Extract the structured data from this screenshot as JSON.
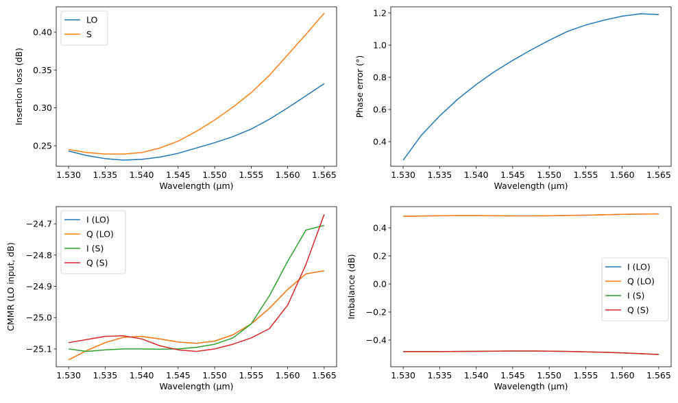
{
  "chart_data": [
    {
      "type": "line",
      "xlabel": "Wavelength (µm)",
      "ylabel": "Insertion loss (dB)",
      "xlim": [
        1.5283,
        1.5667
      ],
      "ylim": [
        0.2229,
        0.4334
      ],
      "xticks": [
        "1.530",
        "1.535",
        "1.540",
        "1.545",
        "1.550",
        "1.555",
        "1.560",
        "1.565"
      ],
      "yticks": [
        "0.25",
        "0.30",
        "0.35",
        "0.40"
      ],
      "legend_position": "upper-left",
      "x": [
        1.53,
        1.5325,
        1.535,
        1.5375,
        1.54,
        1.5425,
        1.545,
        1.5475,
        1.55,
        1.5525,
        1.555,
        1.5575,
        1.56,
        1.5625,
        1.565
      ],
      "series": [
        {
          "name": "LO",
          "color": "#1f77b4",
          "values": [
            0.243,
            0.237,
            0.233,
            0.231,
            0.232,
            0.235,
            0.24,
            0.247,
            0.254,
            0.262,
            0.272,
            0.285,
            0.3,
            0.316,
            0.332
          ]
        },
        {
          "name": "S",
          "color": "#ff7f0e",
          "values": [
            0.245,
            0.241,
            0.239,
            0.239,
            0.241,
            0.247,
            0.256,
            0.269,
            0.284,
            0.301,
            0.32,
            0.343,
            0.37,
            0.397,
            0.425
          ]
        }
      ]
    },
    {
      "type": "line",
      "xlabel": "Wavelength (µm)",
      "ylabel": "Phase error (°)",
      "xlim": [
        1.5283,
        1.5667
      ],
      "ylim": [
        0.247,
        1.238
      ],
      "xticks": [
        "1.530",
        "1.535",
        "1.540",
        "1.545",
        "1.550",
        "1.555",
        "1.560",
        "1.565"
      ],
      "yticks": [
        "0.4",
        "0.6",
        "0.8",
        "1.0",
        "1.2"
      ],
      "legend_position": "none",
      "x": [
        1.53,
        1.5325,
        1.535,
        1.5375,
        1.54,
        1.5425,
        1.545,
        1.5475,
        1.55,
        1.5525,
        1.555,
        1.5575,
        1.56,
        1.5625,
        1.565
      ],
      "series": [
        {
          "color": "#1f77b4",
          "values": [
            0.285,
            0.44,
            0.56,
            0.665,
            0.755,
            0.835,
            0.905,
            0.97,
            1.03,
            1.085,
            1.125,
            1.155,
            1.18,
            1.195,
            1.19
          ]
        }
      ]
    },
    {
      "type": "line",
      "xlabel": "Wavelength (µm)",
      "ylabel": "CMMR (LO input, dB)",
      "xlim": [
        1.5283,
        1.5667
      ],
      "ylim": [
        -25.157,
        -24.645
      ],
      "xticks": [
        "1.530",
        "1.535",
        "1.540",
        "1.545",
        "1.550",
        "1.555",
        "1.560",
        "1.565"
      ],
      "yticks": [
        "−25.1",
        "−25.0",
        "−24.9",
        "−24.8",
        "−24.7"
      ],
      "ytick_values": [
        -25.1,
        -25.0,
        -24.9,
        -24.8,
        -24.7
      ],
      "legend_position": "upper-left",
      "x": [
        1.53,
        1.5325,
        1.535,
        1.5375,
        1.54,
        1.5425,
        1.545,
        1.5475,
        1.55,
        1.5525,
        1.555,
        1.5575,
        1.56,
        1.5625,
        1.565
      ],
      "series": [
        {
          "name": "I (LO)",
          "color": "#1f77b4",
          "values": [
            -25.135,
            -25.105,
            -25.08,
            -25.063,
            -25.06,
            -25.068,
            -25.078,
            -25.082,
            -25.075,
            -25.055,
            -25.02,
            -24.97,
            -24.91,
            -24.86,
            -24.85
          ]
        },
        {
          "name": "Q (LO)",
          "color": "#ff7f0e",
          "values": [
            -25.135,
            -25.105,
            -25.08,
            -25.063,
            -25.06,
            -25.068,
            -25.078,
            -25.082,
            -25.075,
            -25.055,
            -25.02,
            -24.97,
            -24.91,
            -24.86,
            -24.85
          ]
        },
        {
          "name": "I (S)",
          "color": "#2ca02c",
          "values": [
            -25.1,
            -25.108,
            -25.103,
            -25.1,
            -25.1,
            -25.101,
            -25.1,
            -25.095,
            -25.085,
            -25.065,
            -25.02,
            -24.93,
            -24.82,
            -24.72,
            -24.705
          ]
        },
        {
          "name": "Q (S)",
          "color": "#d62728",
          "values": [
            -25.08,
            -25.07,
            -25.06,
            -25.058,
            -25.068,
            -25.09,
            -25.103,
            -25.108,
            -25.1,
            -25.085,
            -25.065,
            -25.035,
            -24.96,
            -24.83,
            -24.67
          ]
        }
      ]
    },
    {
      "type": "line",
      "xlabel": "Wavelength (µm)",
      "ylabel": "Imbalance (dB)",
      "xlim": [
        1.5283,
        1.5667
      ],
      "ylim": [
        -0.59,
        0.551
      ],
      "xticks": [
        "1.530",
        "1.535",
        "1.540",
        "1.545",
        "1.550",
        "1.555",
        "1.560",
        "1.565"
      ],
      "yticks": [
        "−0.4",
        "−0.2",
        "0.0",
        "0.2",
        "0.4"
      ],
      "ytick_values": [
        -0.4,
        -0.2,
        0.0,
        0.2,
        0.4
      ],
      "legend_position": "center-right",
      "x": [
        1.53,
        1.5325,
        1.535,
        1.5375,
        1.54,
        1.5425,
        1.545,
        1.5475,
        1.55,
        1.5525,
        1.555,
        1.5575,
        1.56,
        1.5625,
        1.565
      ],
      "series": [
        {
          "name": "I (LO)",
          "color": "#1f77b4",
          "values": [
            0.482,
            0.484,
            0.486,
            0.487,
            0.487,
            0.486,
            0.485,
            0.485,
            0.486,
            0.488,
            0.49,
            0.493,
            0.496,
            0.498,
            0.499
          ]
        },
        {
          "name": "Q (LO)",
          "color": "#ff7f0e",
          "values": [
            0.482,
            0.484,
            0.486,
            0.487,
            0.487,
            0.486,
            0.485,
            0.485,
            0.486,
            0.488,
            0.49,
            0.493,
            0.496,
            0.498,
            0.499
          ]
        },
        {
          "name": "I (S)",
          "color": "#2ca02c",
          "values": [
            -0.482,
            -0.482,
            -0.482,
            -0.481,
            -0.48,
            -0.479,
            -0.478,
            -0.478,
            -0.479,
            -0.481,
            -0.484,
            -0.487,
            -0.491,
            -0.497,
            -0.503
          ]
        },
        {
          "name": "Q (S)",
          "color": "#d62728",
          "values": [
            -0.482,
            -0.482,
            -0.482,
            -0.481,
            -0.48,
            -0.479,
            -0.478,
            -0.478,
            -0.479,
            -0.481,
            -0.484,
            -0.487,
            -0.491,
            -0.497,
            -0.503
          ]
        }
      ]
    }
  ]
}
